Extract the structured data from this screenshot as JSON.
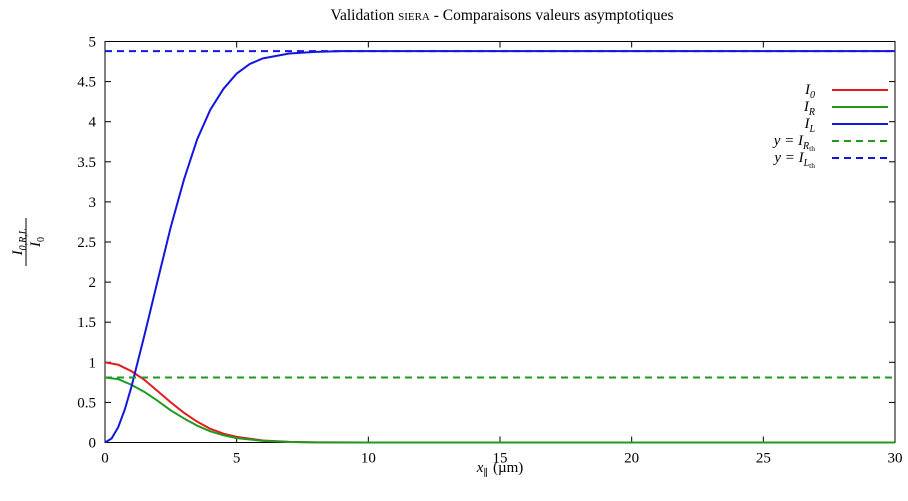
{
  "chart_data": {
    "type": "line",
    "title_prefix": "Validation ",
    "title_code": "siera",
    "title_suffix": " - Comparaisons valeurs asymptotiques",
    "xlabel_var": "x",
    "xlabel_sub": "∥",
    "xlabel_unit": "(µm)",
    "ylabel_num": "I",
    "ylabel_num_sub": "0,R,L",
    "ylabel_den": "I",
    "ylabel_den_sub": "0",
    "xlim": [
      0,
      30
    ],
    "ylim": [
      0,
      5
    ],
    "x_ticks": [
      "0",
      "5",
      "10",
      "15",
      "20",
      "25",
      "30"
    ],
    "y_ticks": [
      "0",
      "0.5",
      "1",
      "1.5",
      "2",
      "2.5",
      "3",
      "3.5",
      "4",
      "4.5",
      "5"
    ],
    "grid": false,
    "legend_position": "top-right",
    "series": [
      {
        "name": "I_0",
        "color": "#e41a1c",
        "style": "solid",
        "x": [
          0,
          0.5,
          1,
          1.5,
          2,
          2.5,
          3,
          3.5,
          4,
          4.5,
          5,
          6,
          7,
          8,
          10,
          12,
          15,
          20,
          25,
          30
        ],
        "y": [
          1.0,
          0.97,
          0.89,
          0.78,
          0.64,
          0.5,
          0.37,
          0.26,
          0.17,
          0.11,
          0.07,
          0.025,
          0.008,
          0.002,
          0.0,
          0.0,
          0.0,
          0.0,
          0.0,
          0.0
        ]
      },
      {
        "name": "I_R",
        "color": "#1f9a1f",
        "style": "solid",
        "x": [
          0,
          0.5,
          1,
          1.5,
          2,
          2.5,
          3,
          3.5,
          4,
          4.5,
          5,
          6,
          7,
          8,
          10,
          12,
          15,
          20,
          25,
          30
        ],
        "y": [
          0.81,
          0.79,
          0.72,
          0.63,
          0.52,
          0.4,
          0.3,
          0.21,
          0.14,
          0.09,
          0.055,
          0.02,
          0.006,
          0.002,
          0.0,
          0.0,
          0.0,
          0.0,
          0.0,
          0.0
        ]
      },
      {
        "name": "I_L",
        "color": "#1515e0",
        "style": "solid",
        "x": [
          0,
          0.25,
          0.5,
          0.75,
          1,
          1.5,
          2,
          2.5,
          3,
          3.5,
          4,
          4.5,
          5,
          5.5,
          6,
          7,
          8,
          9,
          10,
          12,
          15,
          20,
          25,
          30
        ],
        "y": [
          0.0,
          0.05,
          0.19,
          0.41,
          0.69,
          1.34,
          2.02,
          2.69,
          3.28,
          3.78,
          4.15,
          4.41,
          4.6,
          4.72,
          4.79,
          4.85,
          4.87,
          4.88,
          4.88,
          4.88,
          4.88,
          4.88,
          4.88,
          4.88
        ]
      },
      {
        "name": "y = I_R_th",
        "color": "#1f9a1f",
        "style": "dashed",
        "x": [
          0,
          30
        ],
        "y": [
          0.81,
          0.81
        ]
      },
      {
        "name": "y = I_L_th",
        "color": "#1515e0",
        "style": "dashed",
        "x": [
          0,
          30
        ],
        "y": [
          4.88,
          4.88
        ]
      }
    ],
    "legend": [
      {
        "prefix": "",
        "base": "I",
        "sub": "0",
        "subsub": ""
      },
      {
        "prefix": "",
        "base": "I",
        "sub": "R",
        "subsub": ""
      },
      {
        "prefix": "",
        "base": "I",
        "sub": "L",
        "subsub": ""
      },
      {
        "prefix": "y = ",
        "base": "I",
        "sub": "R",
        "subsub": "th"
      },
      {
        "prefix": "y = ",
        "base": "I",
        "sub": "L",
        "subsub": "th"
      }
    ]
  }
}
